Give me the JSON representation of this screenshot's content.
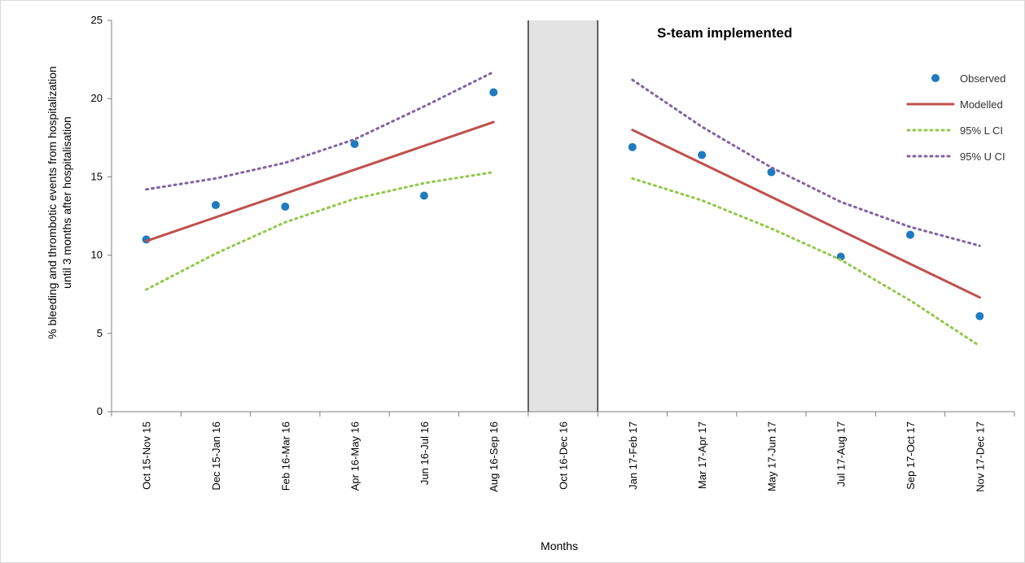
{
  "chart_data": {
    "type": "line",
    "title": "",
    "xlabel": "Months",
    "ylabel_lines": [
      "% bleeding and thrombotic events from hospitalization",
      "until 3 months after hospitalisation"
    ],
    "ylim": [
      0,
      25
    ],
    "yticks": [
      0,
      5,
      10,
      15,
      20,
      25
    ],
    "grid": false,
    "legend_position": "right",
    "categories": [
      "Oct 15-Nov 15",
      "Dec 15-Jan 16",
      "Feb 16-Mar 16",
      "Apr 16-May 16",
      "Jun 16-Jul 16",
      "Aug 16-Sep 16",
      "Oct 16-Dec 16",
      "Jan 17-Feb 17",
      "Mar 17-Apr 17",
      "May 17-Jun 17",
      "Jul 17-Aug 17",
      "Sep 17-Oct 17",
      "Nov 17-Dec 17"
    ],
    "shaded_category": "Oct 16-Dec 16",
    "annotation": "S-team implemented",
    "series": [
      {
        "name": "Observed",
        "style": "markers",
        "color": "#1f7bbf",
        "values": [
          11.0,
          13.2,
          13.1,
          17.1,
          13.8,
          20.4,
          null,
          16.9,
          16.4,
          15.3,
          9.9,
          11.3,
          6.1
        ]
      },
      {
        "name": "Modelled",
        "style": "solid",
        "color": "#c0504d",
        "values": [
          10.9,
          null,
          null,
          null,
          null,
          18.5,
          null,
          18.0,
          null,
          null,
          null,
          null,
          7.3
        ]
      },
      {
        "name": "95% L CI",
        "style": "dotted",
        "color": "#92c84a",
        "values": [
          7.8,
          10.1,
          12.1,
          13.6,
          14.6,
          15.3,
          null,
          14.9,
          13.5,
          11.7,
          9.7,
          7.1,
          4.2
        ]
      },
      {
        "name": "95% U CI",
        "style": "dotted",
        "color": "#8064a2",
        "values": [
          14.2,
          14.9,
          15.9,
          17.4,
          19.5,
          21.7,
          null,
          21.2,
          18.2,
          15.6,
          13.4,
          11.8,
          10.6
        ]
      }
    ],
    "segments": [
      [
        0,
        5
      ],
      [
        7,
        12
      ]
    ]
  }
}
